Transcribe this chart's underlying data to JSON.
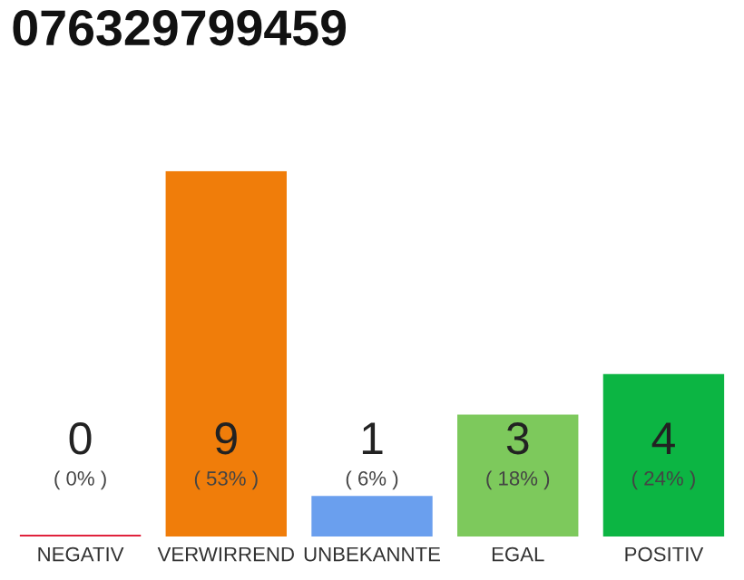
{
  "chart_data": {
    "type": "bar",
    "title": "076329799459",
    "categories": [
      "NEGATIV",
      "VERWIRREND",
      "UNBEKANNTE",
      "EGAL",
      "POSITIV"
    ],
    "values": [
      0,
      9,
      1,
      3,
      4
    ],
    "colors": [
      "#e0223c",
      "#f07d0a",
      "#6a9fee",
      "#7dc95c",
      "#0cb543"
    ],
    "data_labels": true,
    "annotations": [
      "( 0% )",
      "( 53% )",
      "( 6% )",
      "( 18% )",
      "( 24% )"
    ],
    "grid": false,
    "legend": false
  }
}
